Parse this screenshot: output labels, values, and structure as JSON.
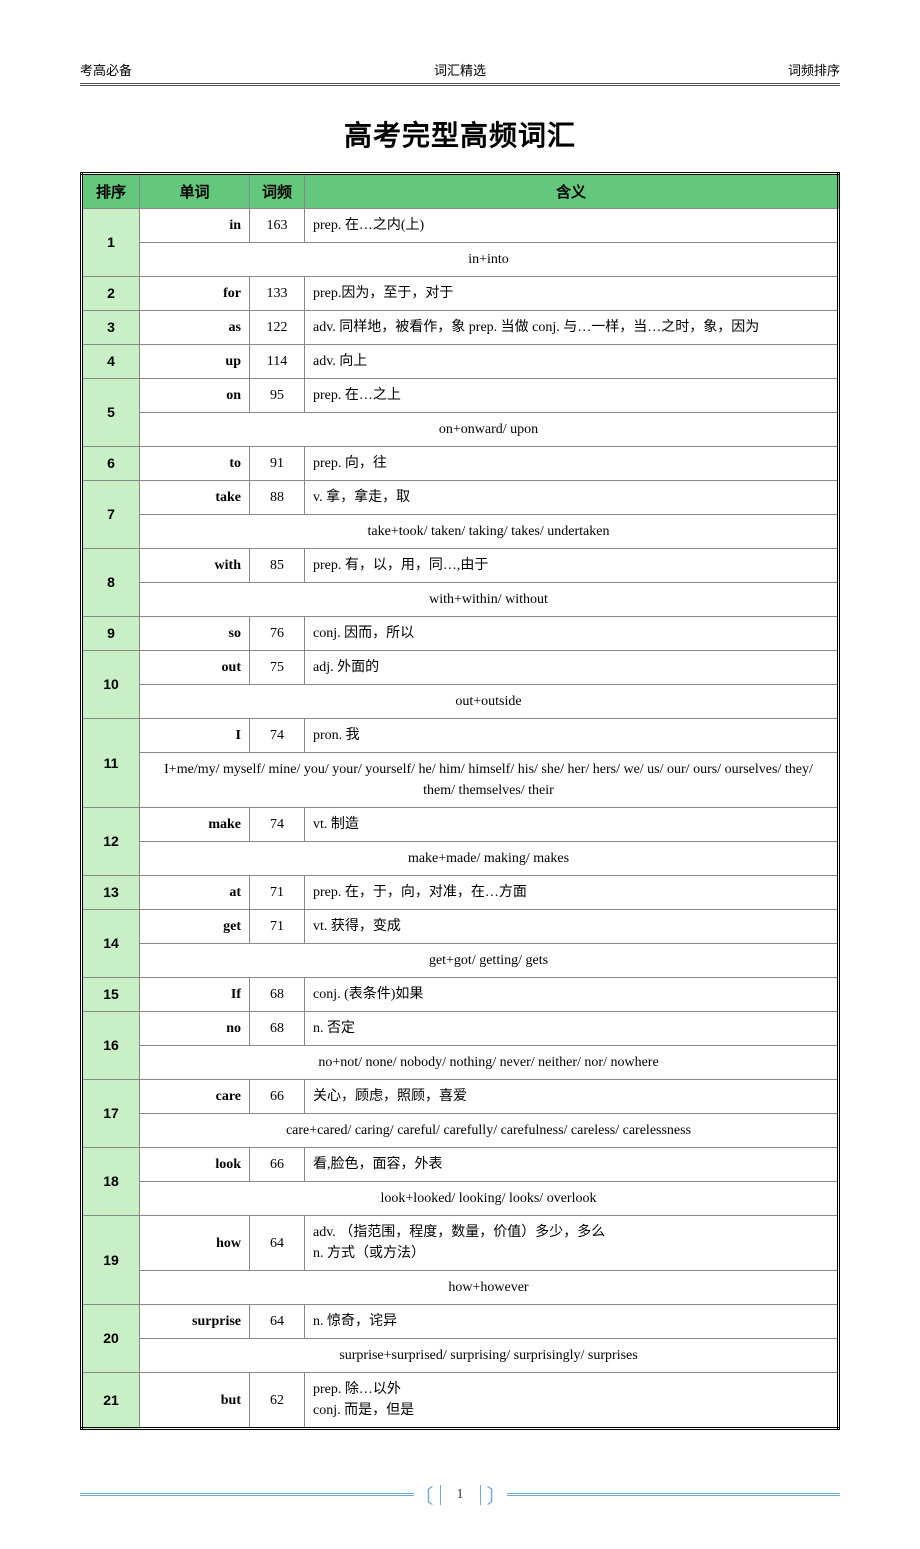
{
  "header": {
    "left": "考高必备",
    "center": "词汇精选",
    "right": "词频排序"
  },
  "title": "高考完型高频词汇",
  "columns": {
    "rank": "排序",
    "word": "单词",
    "freq": "词频",
    "meaning": "含义"
  },
  "footer": {
    "page": "1"
  },
  "rows": [
    {
      "rank": "1",
      "word": "in",
      "freq": "163",
      "meaning": "prep. 在…之内(上)",
      "sub": "in+into"
    },
    {
      "rank": "2",
      "word": "for",
      "freq": "133",
      "meaning": "prep.因为，至于，对于"
    },
    {
      "rank": "3",
      "word": "as",
      "freq": "122",
      "meaning": "adv. 同样地，被看作，象 prep. 当做 conj. 与…一样，当…之时，象，因为"
    },
    {
      "rank": "4",
      "word": "up",
      "freq": "114",
      "meaning": "adv. 向上"
    },
    {
      "rank": "5",
      "word": "on",
      "freq": "95",
      "meaning": "prep. 在…之上",
      "sub": "on+onward/ upon"
    },
    {
      "rank": "6",
      "word": "to",
      "freq": "91",
      "meaning": "prep. 向，往"
    },
    {
      "rank": "7",
      "word": "take",
      "freq": "88",
      "meaning": "v. 拿，拿走，取",
      "sub": "take+took/ taken/ taking/ takes/ undertaken"
    },
    {
      "rank": "8",
      "word": "with",
      "freq": "85",
      "meaning": "prep. 有，以，用，同…,由于",
      "sub": "with+within/ without"
    },
    {
      "rank": "9",
      "word": "so",
      "freq": "76",
      "meaning": "conj. 因而，所以"
    },
    {
      "rank": "10",
      "word": "out",
      "freq": "75",
      "meaning": "adj. 外面的",
      "sub": "out+outside"
    },
    {
      "rank": "11",
      "word": "I",
      "freq": "74",
      "meaning": "pron. 我",
      "sub": "I+me/my/ myself/ mine/ you/ your/ yourself/ he/ him/ himself/ his/ she/ her/ hers/ we/ us/ our/ ours/ ourselves/ they/ them/ themselves/ their"
    },
    {
      "rank": "12",
      "word": "make",
      "freq": "74",
      "meaning": "vt. 制造",
      "sub": "make+made/ making/ makes"
    },
    {
      "rank": "13",
      "word": "at",
      "freq": "71",
      "meaning": "prep. 在，于，向，对准，在…方面"
    },
    {
      "rank": "14",
      "word": "get",
      "freq": "71",
      "meaning": "vt. 获得，变成",
      "sub": "get+got/ getting/ gets"
    },
    {
      "rank": "15",
      "word": "If",
      "freq": "68",
      "meaning": "conj. (表条件)如果"
    },
    {
      "rank": "16",
      "word": "no",
      "freq": "68",
      "meaning": "n. 否定",
      "sub": "no+not/ none/ nobody/ nothing/ never/ neither/ nor/ nowhere"
    },
    {
      "rank": "17",
      "word": "care",
      "freq": "66",
      "meaning": " 关心，顾虑，照顾，喜爱",
      "sub": "care+cared/ caring/ careful/ carefully/ carefulness/ careless/ carelessness"
    },
    {
      "rank": "18",
      "word": "look",
      "freq": "66",
      "meaning": " 看,脸色，面容，外表",
      "sub": "look+looked/ looking/ looks/ overlook"
    },
    {
      "rank": "19",
      "word": "how",
      "freq": "64",
      "meaning": "adv. （指范围，程度，数量，价值）多少，多么\nn. 方式（或方法）",
      "sub": "how+however"
    },
    {
      "rank": "20",
      "word": "surprise",
      "freq": "64",
      "meaning": "n. 惊奇，诧异",
      "sub": "surprise+surprised/ surprising/ surprisingly/ surprises"
    },
    {
      "rank": "21",
      "word": "but",
      "freq": "62",
      "meaning": "prep. 除…以外\nconj. 而是，但是"
    }
  ]
}
